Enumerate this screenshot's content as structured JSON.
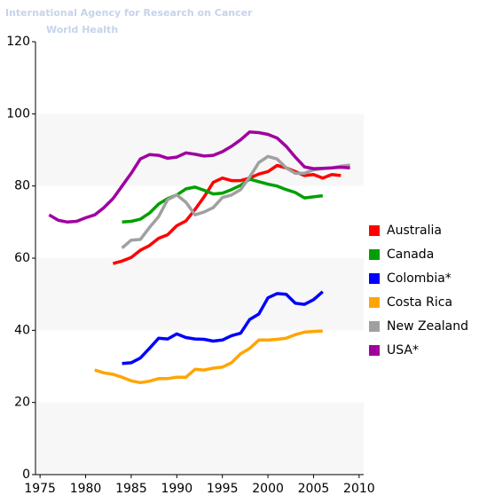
{
  "chart_data": {
    "type": "line",
    "header": "International Agency for Research on Cancer",
    "subheader": "World Health",
    "x": [
      1976,
      1977,
      1978,
      1979,
      1980,
      1981,
      1982,
      1983,
      1984,
      1985,
      1986,
      1987,
      1988,
      1989,
      1990,
      1991,
      1992,
      1993,
      1994,
      1995,
      1996,
      1997,
      1998,
      1999,
      2000,
      2001,
      2002,
      2003,
      2004,
      2005,
      2006,
      2007,
      2008,
      2009
    ],
    "xlim": [
      1974.5,
      2010.5
    ],
    "xticks": [
      1975,
      1980,
      1985,
      1990,
      1995,
      2000,
      2005,
      2010
    ],
    "ylim": [
      0,
      120
    ],
    "yticks": [
      0,
      20,
      40,
      60,
      80,
      100,
      120
    ],
    "grid": true,
    "legend": "right",
    "series": [
      {
        "name": "Australia",
        "color": "#ff0000",
        "values": [
          null,
          null,
          null,
          null,
          null,
          null,
          null,
          58.5,
          59.2,
          60.2,
          62.2,
          63.5,
          65.5,
          66.5,
          69,
          70.3,
          73.5,
          77,
          81,
          82.2,
          81.5,
          81.5,
          82.2,
          83.3,
          84,
          85.7,
          85,
          84,
          82.9,
          83.2,
          82.2,
          83.2,
          82.9,
          null
        ]
      },
      {
        "name": "Canada",
        "color": "#00a000",
        "values": [
          null,
          null,
          null,
          null,
          null,
          null,
          null,
          null,
          70,
          70.2,
          70.8,
          72.5,
          75,
          76.5,
          77.5,
          79.2,
          79.7,
          78.8,
          77.8,
          78,
          79,
          80.2,
          81.9,
          81.2,
          80.5,
          80,
          79,
          78.2,
          76.7,
          77,
          77.3,
          null,
          null,
          null
        ]
      },
      {
        "name": "Colombia*",
        "color": "#0000ff",
        "values": [
          null,
          null,
          null,
          null,
          null,
          null,
          null,
          null,
          30.8,
          31,
          32.3,
          35,
          37.8,
          37.6,
          39,
          38,
          37.6,
          37.5,
          37,
          37.3,
          38.5,
          39.2,
          43,
          44.5,
          49,
          50.2,
          50,
          47.5,
          47.2,
          48.5,
          50.7,
          null,
          null,
          null
        ]
      },
      {
        "name": "Costa Rica",
        "color": "#ffa500",
        "values": [
          null,
          null,
          null,
          null,
          null,
          29,
          28.2,
          27.8,
          27,
          26,
          25.5,
          25.9,
          26.6,
          26.6,
          27,
          27,
          29.2,
          29,
          29.5,
          29.8,
          31,
          33.5,
          35,
          37.3,
          37.3,
          37.5,
          37.8,
          38.8,
          39.5,
          39.7,
          39.8,
          null,
          null,
          null
        ]
      },
      {
        "name": "New Zealand",
        "color": "#a0a0a0",
        "values": [
          null,
          null,
          null,
          null,
          null,
          null,
          null,
          null,
          62.8,
          65,
          65.2,
          68.5,
          71.5,
          76.2,
          77.5,
          75.5,
          72,
          72.8,
          74,
          76.8,
          77.5,
          79,
          82.5,
          86.5,
          88.2,
          87.5,
          85,
          83.5,
          83.5,
          84.5,
          84.8,
          85,
          85.5,
          85.8
        ]
      },
      {
        "name": "USA*",
        "color": "#a000a0",
        "values": [
          72,
          70.5,
          70,
          70.2,
          71.2,
          72,
          74,
          76.5,
          80,
          83.5,
          87.5,
          88.7,
          88.5,
          87.7,
          88,
          89.2,
          88.8,
          88.3,
          88.5,
          89.5,
          91,
          92.8,
          95,
          94.8,
          94.3,
          93.3,
          91,
          88,
          85.3,
          84.8,
          84.9,
          85,
          85.2,
          85
        ]
      }
    ]
  }
}
